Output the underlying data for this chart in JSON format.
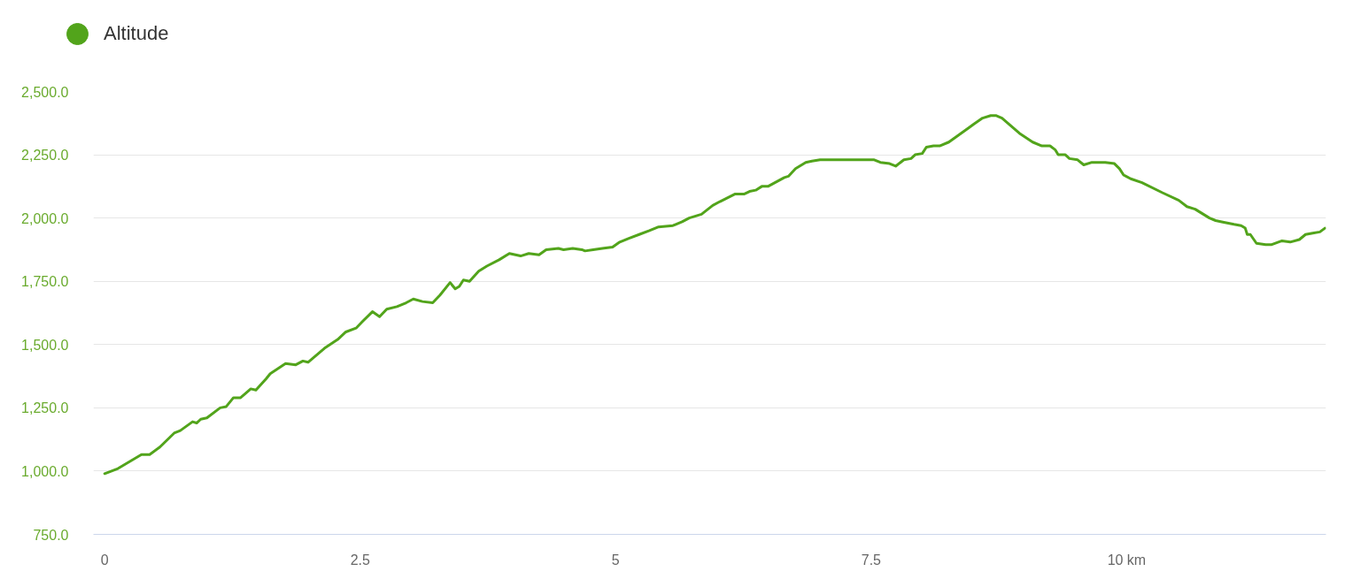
{
  "chart_data": {
    "type": "line",
    "x": [
      0,
      0.13,
      0.36,
      0.44,
      0.54,
      0.68,
      0.74,
      0.86,
      0.9,
      0.94,
      1.0,
      1.13,
      1.19,
      1.26,
      1.33,
      1.43,
      1.48,
      1.58,
      1.62,
      1.77,
      1.87,
      1.94,
      1.99,
      2.15,
      2.28,
      2.36,
      2.46,
      2.52,
      2.62,
      2.69,
      2.76,
      2.86,
      2.95,
      3.02,
      3.11,
      3.21,
      3.28,
      3.38,
      3.43,
      3.47,
      3.51,
      3.57,
      3.66,
      3.74,
      3.86,
      3.96,
      4.07,
      4.15,
      4.25,
      4.32,
      4.44,
      4.49,
      4.58,
      4.67,
      4.7,
      4.78,
      4.87,
      4.97,
      5.04,
      5.13,
      5.23,
      5.33,
      5.42,
      5.56,
      5.65,
      5.72,
      5.84,
      5.95,
      6.02,
      6.17,
      6.26,
      6.31,
      6.37,
      6.43,
      6.49,
      6.65,
      6.69,
      6.76,
      6.86,
      6.92,
      7.0,
      7.3,
      7.38,
      7.47,
      7.53,
      7.59,
      7.68,
      7.74,
      7.82,
      7.89,
      7.93,
      8.0,
      8.04,
      8.11,
      8.17,
      8.26,
      8.45,
      8.5,
      8.59,
      8.67,
      8.72,
      8.78,
      8.88,
      8.95,
      9.08,
      9.17,
      9.25,
      9.3,
      9.33,
      9.4,
      9.44,
      9.52,
      9.58,
      9.66,
      9.79,
      9.88,
      9.93,
      9.97,
      10.04,
      10.15,
      10.35,
      10.51,
      10.59,
      10.67,
      10.81,
      10.87,
      10.93,
      11.05,
      11.12,
      11.16,
      11.18,
      11.21,
      11.27,
      11.36,
      11.42,
      11.52,
      11.6,
      11.69,
      11.75,
      11.82,
      11.89,
      11.94
    ],
    "series": [
      {
        "name": "Altitude",
        "color": "#52a41b",
        "values": [
          990,
          1010,
          1065,
          1065,
          1095,
          1150,
          1160,
          1195,
          1190,
          1205,
          1210,
          1250,
          1255,
          1290,
          1290,
          1325,
          1320,
          1365,
          1385,
          1425,
          1420,
          1435,
          1430,
          1485,
          1520,
          1550,
          1565,
          1590,
          1630,
          1610,
          1640,
          1650,
          1665,
          1680,
          1670,
          1665,
          1695,
          1745,
          1720,
          1730,
          1755,
          1750,
          1790,
          1810,
          1835,
          1860,
          1850,
          1860,
          1855,
          1875,
          1880,
          1875,
          1880,
          1875,
          1870,
          1875,
          1880,
          1885,
          1905,
          1920,
          1935,
          1950,
          1965,
          1970,
          1985,
          2000,
          2015,
          2050,
          2065,
          2095,
          2095,
          2105,
          2110,
          2125,
          2125,
          2160,
          2165,
          2195,
          2220,
          2225,
          2230,
          2230,
          2230,
          2230,
          2230,
          2220,
          2215,
          2205,
          2230,
          2235,
          2250,
          2255,
          2280,
          2285,
          2285,
          2300,
          2355,
          2370,
          2395,
          2405,
          2405,
          2395,
          2360,
          2335,
          2300,
          2285,
          2285,
          2270,
          2250,
          2250,
          2235,
          2230,
          2210,
          2220,
          2220,
          2215,
          2195,
          2170,
          2155,
          2140,
          2100,
          2070,
          2045,
          2035,
          2000,
          1990,
          1985,
          1975,
          1970,
          1960,
          1935,
          1935,
          1900,
          1895,
          1895,
          1910,
          1905,
          1915,
          1935,
          1940,
          1945,
          1960
        ]
      }
    ],
    "xlim": [
      -0.11,
      11.95
    ],
    "ylim": [
      750,
      2500
    ],
    "xticks": [
      0,
      2.5,
      5,
      7.5,
      {
        "value": 10,
        "label": "10 km"
      }
    ],
    "yticks": [
      {
        "value": 750,
        "label": "750.0"
      },
      {
        "value": 1000,
        "label": "1,000.0"
      },
      {
        "value": 1250,
        "label": "1,250.0"
      },
      {
        "value": 1500,
        "label": "1,500.0"
      },
      {
        "value": 1750,
        "label": "1,750.0"
      },
      {
        "value": 2000,
        "label": "2,000.0"
      },
      {
        "value": 2250,
        "label": "2,250.0"
      },
      {
        "value": 2500,
        "label": "2,500.0"
      }
    ],
    "grid": "y",
    "legend": "top left",
    "line_style": "solid"
  }
}
